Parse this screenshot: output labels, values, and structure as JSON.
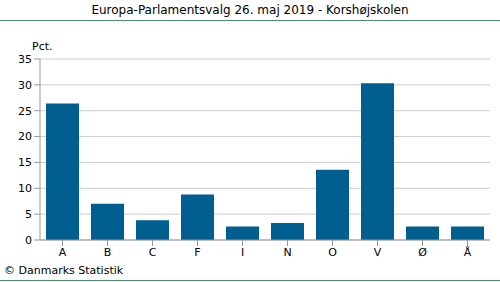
{
  "chart_data": {
    "type": "bar",
    "title": "Europa-Parlamentsvalg 26. maj 2019 - Korshøjskolen",
    "ylabel": "Pct.",
    "source": "© Danmarks Statistik",
    "categories": [
      "A",
      "B",
      "C",
      "F",
      "I",
      "N",
      "O",
      "V",
      "Ø",
      "Å"
    ],
    "values": [
      26.4,
      7.0,
      3.8,
      8.8,
      2.6,
      3.3,
      13.6,
      30.3,
      2.6,
      2.6
    ],
    "color": "#005f8f",
    "ylim": [
      0,
      35
    ],
    "yticks": [
      0,
      5,
      10,
      15,
      20,
      25,
      30,
      35
    ],
    "grid": true
  }
}
